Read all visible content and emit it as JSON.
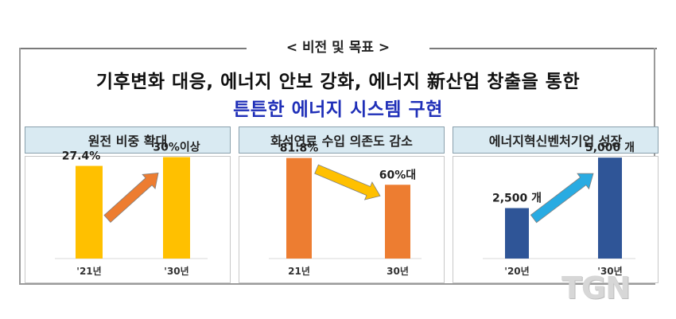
{
  "header": {
    "label": "< 비전 및 목표 >"
  },
  "vision": {
    "line1": "기후변화 대응, 에너지 안보 강화, 에너지 新산업 창출을 통한",
    "line2": "튼튼한 에너지 시스템 구현"
  },
  "watermark": "TGN",
  "colors": {
    "yellow_bar": "#ffc000",
    "orange_bar": "#ed7d31",
    "blue_bar": "#2f5597",
    "title_blue": "#1f2fb8",
    "panel_bg": "#d9eaf2",
    "arrow_orange": "#ed7d31",
    "arrow_yellow": "#ffc000",
    "arrow_blue": "#29abe2"
  },
  "chart_data": [
    {
      "type": "bar",
      "title": "원전 비중 확대",
      "categories": [
        "'21년",
        "'30년"
      ],
      "values": [
        27.4,
        30
      ],
      "value_labels": [
        "27.4%",
        "30%이상"
      ],
      "ylim": [
        0,
        40
      ],
      "bar_color": "#ffc000",
      "arrow_color": "#ed7d31"
    },
    {
      "type": "bar",
      "title": "화석연료 수입 의존도 감소",
      "categories": [
        "21년",
        "30년"
      ],
      "values": [
        81.8,
        60
      ],
      "value_labels": [
        "81.8%",
        "60%대"
      ],
      "ylim": [
        0,
        110
      ],
      "bar_color": "#ed7d31",
      "arrow_color": "#ffc000"
    },
    {
      "type": "bar",
      "title": "에너지혁신벤처기업 성장",
      "categories": [
        "'20년",
        "'30년"
      ],
      "values": [
        2500,
        5000
      ],
      "value_labels": [
        "2,500 개",
        "5,000 개"
      ],
      "ylim": [
        0,
        6700
      ],
      "bar_color": "#2f5597",
      "arrow_color": "#29abe2"
    }
  ]
}
